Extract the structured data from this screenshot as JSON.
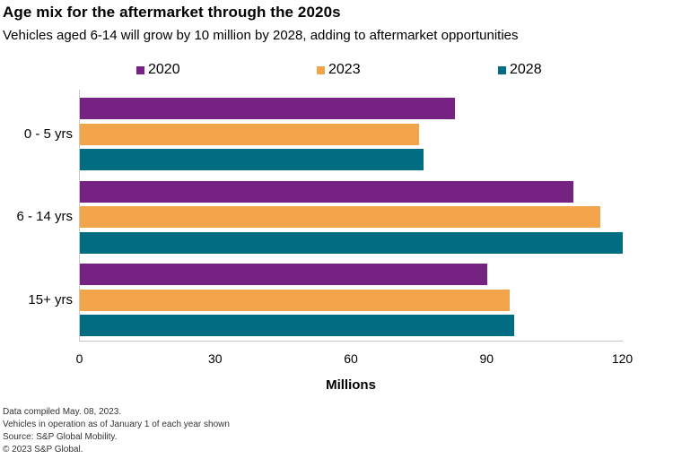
{
  "title": "Age mix for the aftermarket through the 2020s",
  "subtitle": "Vehicles aged 6-14 will grow by 10 million by 2028, adding to aftermarket opportunities",
  "chart_data": {
    "type": "bar",
    "orientation": "horizontal",
    "title": "Age mix for the aftermarket through the 2020s",
    "subtitle": "Vehicles aged 6-14 will grow by 10 million by 2028, adding to aftermarket opportunities",
    "categories": [
      "0 - 5 yrs",
      "6 - 14 yrs",
      "15+ yrs"
    ],
    "series": [
      {
        "name": "2020",
        "color": "#762282",
        "values": [
          83,
          109,
          90
        ]
      },
      {
        "name": "2023",
        "color": "#F2A44A",
        "values": [
          75,
          115,
          95
        ]
      },
      {
        "name": "2028",
        "color": "#006D82",
        "values": [
          76,
          120,
          96
        ]
      }
    ],
    "xlabel": "Millions",
    "xlim": [
      0,
      120
    ],
    "xticks": [
      0,
      30,
      60,
      90,
      120
    ],
    "legend_position": "top",
    "grid": false
  },
  "footer": {
    "lines": [
      "Data compiled May. 08, 2023.",
      "Vehicles in operation as of January 1 of each year shown",
      "Source: S&P Global Mobility.",
      "© 2023 S&P Global."
    ]
  }
}
